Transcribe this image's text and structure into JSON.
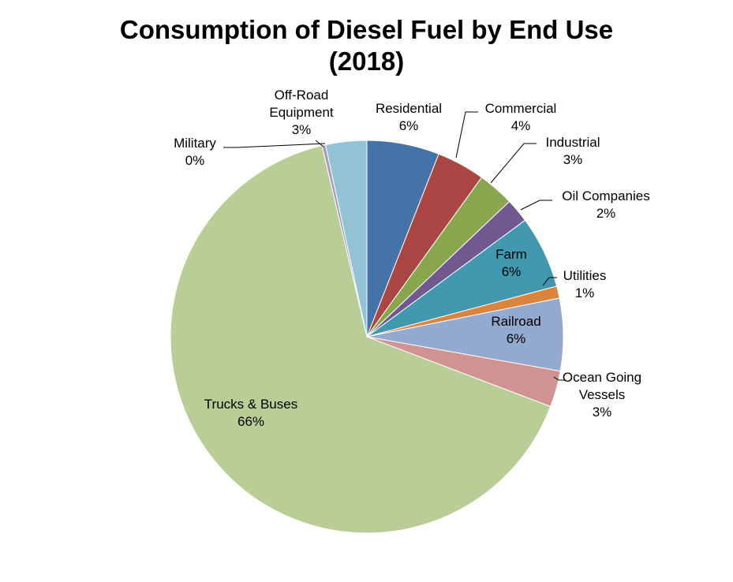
{
  "chart_data": {
    "type": "pie",
    "title_line1": "Consumption of Diesel Fuel by End Use",
    "title_line2": "(2018)",
    "slices": [
      {
        "name": "Residential",
        "value": 6,
        "label": "6%",
        "color": "#4572A7"
      },
      {
        "name": "Commercial",
        "value": 4,
        "label": "4%",
        "color": "#AA4643"
      },
      {
        "name": "Industrial",
        "value": 3,
        "label": "3%",
        "color": "#89A54E"
      },
      {
        "name": "Oil Companies",
        "value": 2,
        "label": "2%",
        "color": "#71588F"
      },
      {
        "name": "Farm",
        "value": 6,
        "label": "6%",
        "color": "#4198AF"
      },
      {
        "name": "Utilities",
        "value": 1,
        "label": "1%",
        "color": "#DB843D"
      },
      {
        "name": "Railroad",
        "value": 6,
        "label": "6%",
        "color": "#93A9CF"
      },
      {
        "name": "Ocean Going Vessels",
        "value": 3,
        "label": "3%",
        "color": "#D19392"
      },
      {
        "name": "Trucks & Buses",
        "value": 66,
        "label": "66%",
        "color": "#B9CD96"
      },
      {
        "name": "Military",
        "value": 0.3,
        "label": "0%",
        "color": "#A99BBD"
      },
      {
        "name": "Off-Road Equipment",
        "value": 3.4,
        "label": "3%",
        "color": "#92C3D5"
      }
    ]
  }
}
